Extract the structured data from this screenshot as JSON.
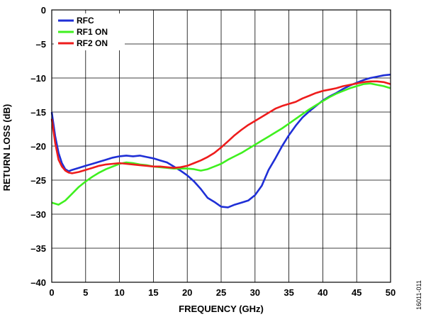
{
  "chart_data": {
    "type": "line",
    "title": "",
    "xlabel": "FREQUENCY (GHz)",
    "ylabel": "RETURN LOSS (dB)",
    "xlim": [
      0,
      50
    ],
    "ylim": [
      -40,
      0
    ],
    "xticks": [
      0,
      5,
      10,
      15,
      20,
      25,
      30,
      35,
      40,
      45,
      50
    ],
    "yticks": [
      0,
      -5,
      -10,
      -15,
      -20,
      -25,
      -30,
      -35,
      -40
    ],
    "grid": true,
    "legend_position": "top-left",
    "figure_id": "16011-011",
    "series": [
      {
        "name": "RFC",
        "color": "#1f2fd6",
        "x": [
          0,
          0.5,
          1,
          1.5,
          2,
          2.5,
          3,
          4,
          5,
          6,
          7,
          8,
          9,
          10,
          11,
          12,
          13,
          14,
          15,
          16,
          17,
          18,
          19,
          20,
          21,
          22,
          23,
          24,
          25,
          26,
          27,
          28,
          29,
          30,
          31,
          32,
          33,
          34,
          35,
          36,
          37,
          38,
          39,
          40,
          41,
          42,
          43,
          44,
          45,
          46,
          47,
          48,
          49,
          50
        ],
        "y": [
          -15,
          -18.5,
          -21,
          -22.5,
          -23.4,
          -23.7,
          -23.5,
          -23.2,
          -22.9,
          -22.6,
          -22.3,
          -22.0,
          -21.7,
          -21.5,
          -21.4,
          -21.5,
          -21.4,
          -21.6,
          -21.8,
          -22.1,
          -22.4,
          -23.0,
          -23.6,
          -24.3,
          -25.2,
          -26.3,
          -27.6,
          -28.2,
          -28.9,
          -29.0,
          -28.6,
          -28.3,
          -28.0,
          -27.2,
          -25.8,
          -23.5,
          -21.8,
          -20.0,
          -18.4,
          -17.0,
          -15.8,
          -14.9,
          -14.1,
          -13.3,
          -12.7,
          -12.2,
          -11.6,
          -11.1,
          -10.7,
          -10.3,
          -10.0,
          -9.8,
          -9.6,
          -9.5
        ]
      },
      {
        "name": "RF1 ON",
        "color": "#3ff01f",
        "x": [
          0,
          1,
          2,
          3,
          4,
          5,
          6,
          7,
          8,
          9,
          10,
          11,
          12,
          13,
          14,
          15,
          16,
          17,
          18,
          19,
          20,
          21,
          22,
          23,
          24,
          25,
          26,
          27,
          28,
          29,
          30,
          31,
          32,
          33,
          34,
          35,
          36,
          37,
          38,
          39,
          40,
          41,
          42,
          43,
          44,
          45,
          46,
          47,
          48,
          49,
          50
        ],
        "y": [
          -28.3,
          -28.6,
          -28.0,
          -27.0,
          -26.0,
          -25.2,
          -24.5,
          -23.9,
          -23.4,
          -23.0,
          -22.6,
          -22.4,
          -22.5,
          -22.7,
          -22.8,
          -23.0,
          -23.1,
          -23.2,
          -23.3,
          -23.3,
          -23.3,
          -23.4,
          -23.6,
          -23.4,
          -23.0,
          -22.6,
          -22.0,
          -21.5,
          -21.0,
          -20.4,
          -19.8,
          -19.2,
          -18.6,
          -18.0,
          -17.4,
          -16.7,
          -16.0,
          -15.3,
          -14.6,
          -14.0,
          -13.4,
          -12.8,
          -12.3,
          -11.9,
          -11.5,
          -11.2,
          -10.9,
          -10.8,
          -11.0,
          -11.2,
          -11.5
        ]
      },
      {
        "name": "RF2 ON",
        "color": "#ee1c1c",
        "x": [
          0,
          0.5,
          1,
          1.5,
          2,
          2.5,
          3,
          4,
          5,
          6,
          7,
          8,
          9,
          10,
          11,
          12,
          13,
          14,
          15,
          16,
          17,
          18,
          19,
          20,
          21,
          22,
          23,
          24,
          25,
          26,
          27,
          28,
          29,
          30,
          31,
          32,
          33,
          34,
          35,
          36,
          37,
          38,
          39,
          40,
          41,
          42,
          43,
          44,
          45,
          46,
          47,
          48,
          49,
          50
        ],
        "y": [
          -16,
          -19.5,
          -22,
          -23.0,
          -23.6,
          -23.9,
          -24.0,
          -23.8,
          -23.5,
          -23.2,
          -22.9,
          -22.7,
          -22.6,
          -22.5,
          -22.6,
          -22.7,
          -22.8,
          -22.9,
          -23.0,
          -23.0,
          -23.1,
          -23.2,
          -23.1,
          -22.9,
          -22.5,
          -22.1,
          -21.6,
          -21.0,
          -20.2,
          -19.3,
          -18.4,
          -17.6,
          -16.9,
          -16.3,
          -15.7,
          -15.1,
          -14.5,
          -14.1,
          -13.8,
          -13.5,
          -13.0,
          -12.6,
          -12.2,
          -11.9,
          -11.7,
          -11.5,
          -11.2,
          -11.0,
          -10.8,
          -10.6,
          -10.5,
          -10.5,
          -10.6,
          -10.9
        ]
      }
    ]
  }
}
